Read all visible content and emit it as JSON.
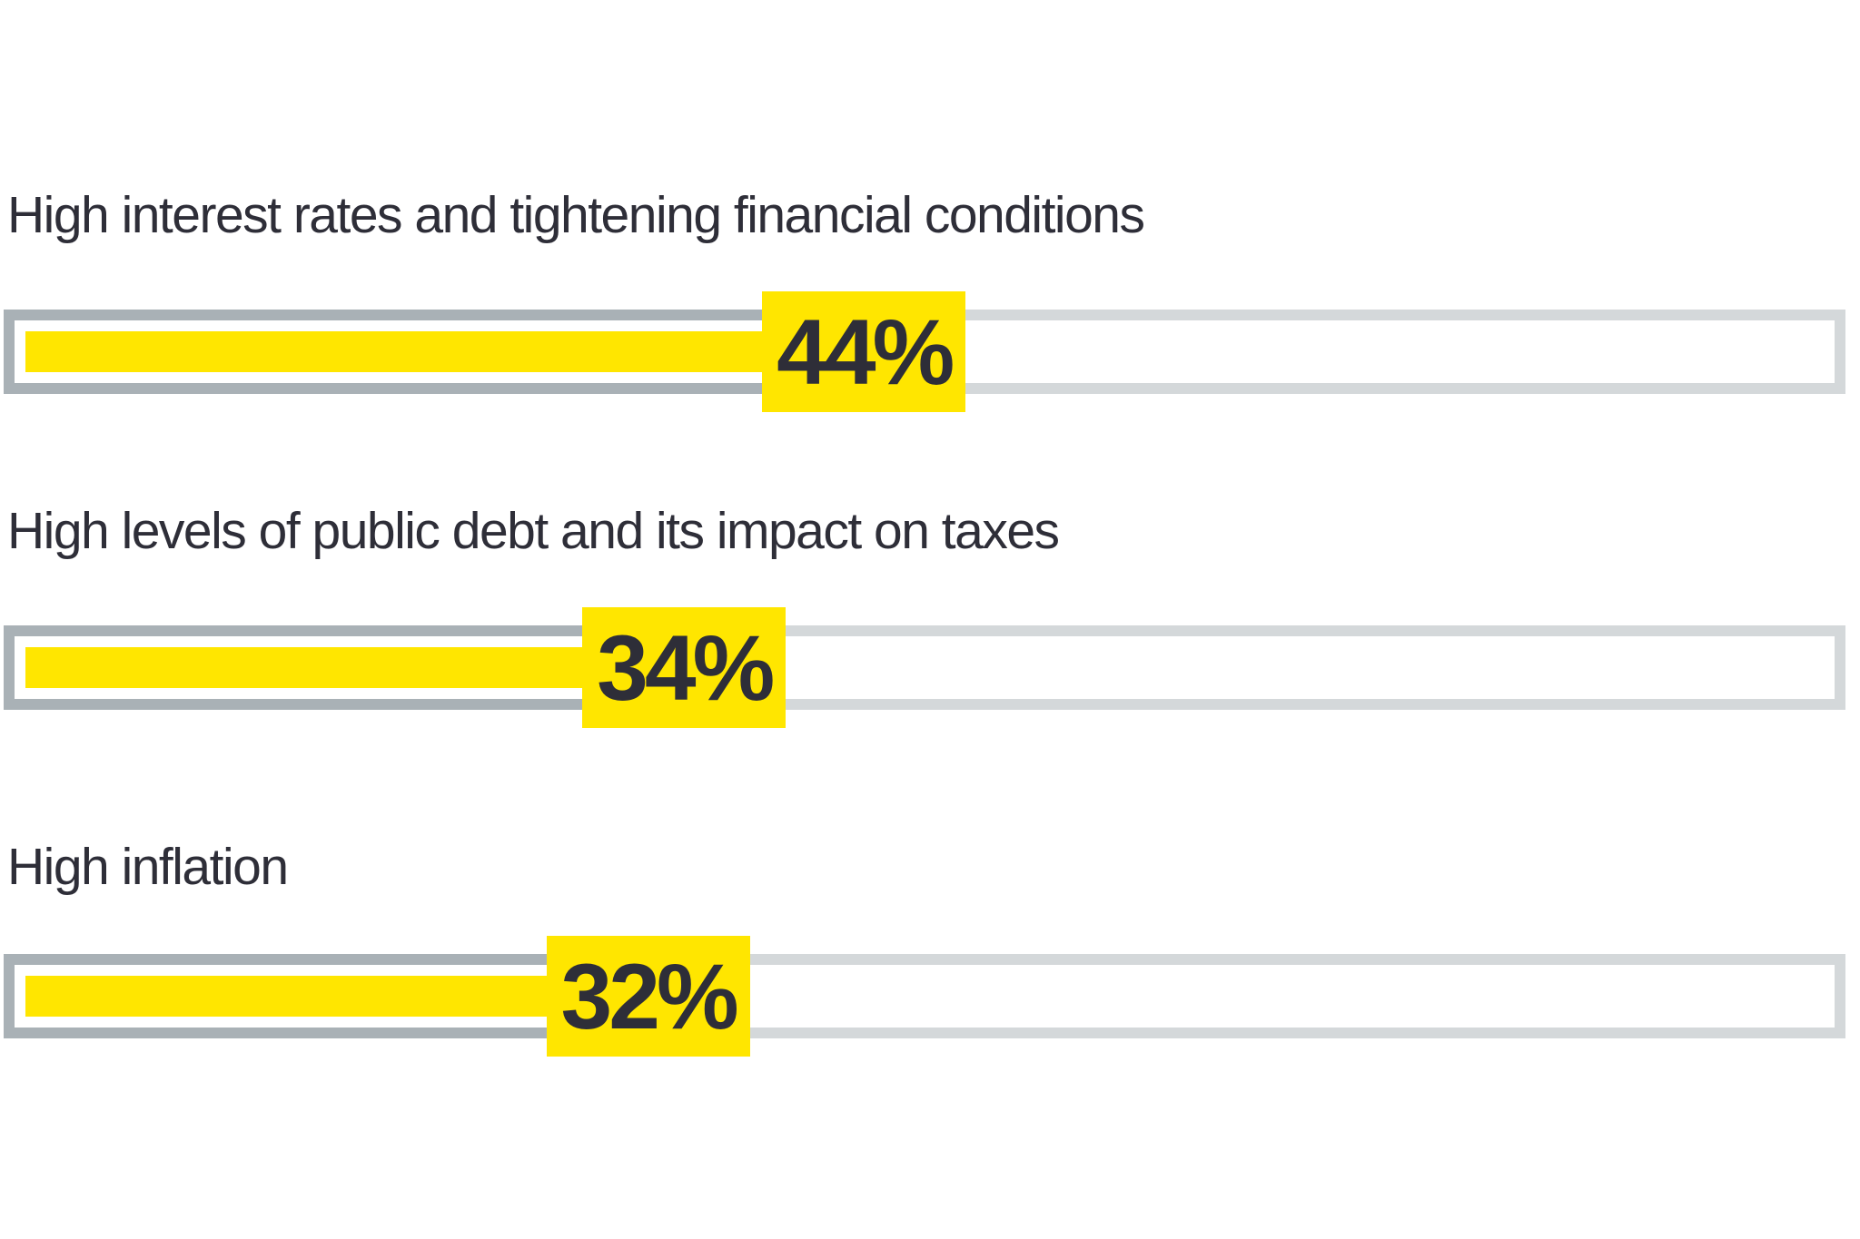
{
  "chart_data": {
    "type": "bar",
    "orientation": "horizontal",
    "title": "",
    "categories": [
      "High interest rates and tightening financial conditions",
      "High levels of public debt and its impact on taxes",
      "High inflation"
    ],
    "values": [
      44,
      34,
      32
    ],
    "value_labels": [
      "44%",
      "34%",
      "32%"
    ],
    "unit": "%",
    "xlim": [
      0,
      100
    ],
    "grid": false,
    "legend": false,
    "layout_hints": {
      "value_badge": "yellow square overlapping bar end",
      "track": "full-width outlined track, darker outline over filled portion"
    }
  },
  "colors": {
    "accent_yellow": "#FFE600",
    "label_text": "#2E2E38",
    "value_text": "#2E2E38",
    "track_outline_filled_section": "#A9B1B6",
    "track_outline_empty_section": "#D4D8DA",
    "track_background": "#FFFFFF",
    "page_background": "#FFFFFF"
  }
}
